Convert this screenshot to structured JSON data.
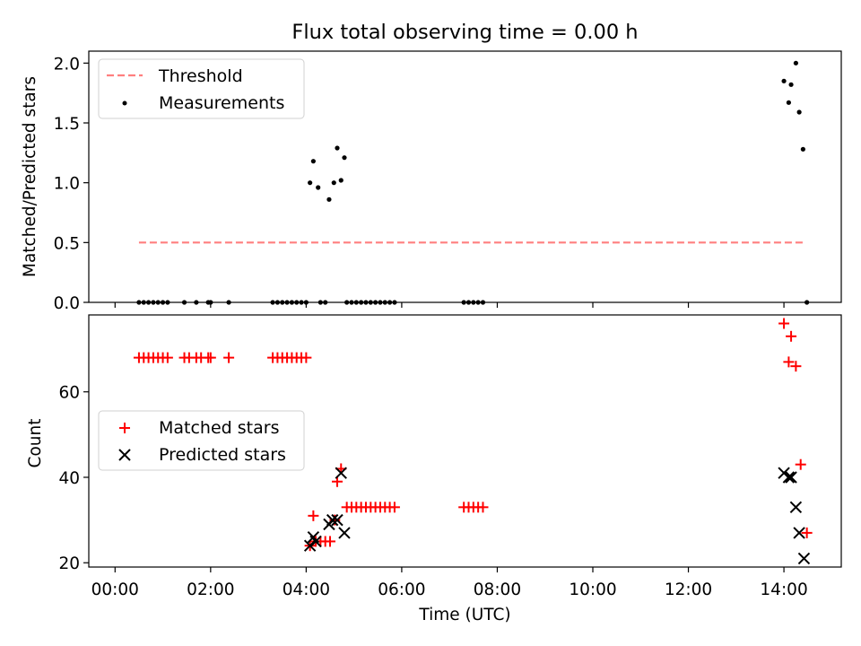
{
  "chart_data": {
    "title": "Flux total observing time = 0.00 h",
    "xlabel": "Time (UTC)",
    "x_unit": "hours UTC",
    "x_ticks": [
      0,
      2,
      4,
      6,
      8,
      10,
      12,
      14
    ],
    "x_tick_labels": [
      "00:00",
      "02:00",
      "04:00",
      "06:00",
      "08:00",
      "10:00",
      "12:00",
      "14:00"
    ],
    "x_range": [
      -0.55,
      15.2
    ],
    "panels": [
      {
        "type": "scatter",
        "ylabel": "Matched/Predicted stars",
        "ylim": [
          0,
          2.1
        ],
        "y_ticks": [
          0,
          0.5,
          1.0,
          1.5,
          2.0
        ],
        "y_tick_labels": [
          "0.0",
          "0.5",
          "1.0",
          "1.5",
          "2.0"
        ],
        "legend_position": "top-left",
        "threshold": {
          "label": "Threshold",
          "value": 0.5,
          "x_start": 0.5,
          "x_end": 14.4,
          "color": "#ff7f7f"
        },
        "series": [
          {
            "name": "Measurements",
            "color": "#000000",
            "marker": "dot",
            "points": [
              [
                0.5,
                0
              ],
              [
                0.6,
                0
              ],
              [
                0.7,
                0
              ],
              [
                0.8,
                0
              ],
              [
                0.9,
                0
              ],
              [
                1.0,
                0
              ],
              [
                1.1,
                0
              ],
              [
                1.45,
                0
              ],
              [
                1.7,
                0
              ],
              [
                1.95,
                0
              ],
              [
                2.0,
                0
              ],
              [
                2.38,
                0
              ],
              [
                3.3,
                0
              ],
              [
                3.4,
                0
              ],
              [
                3.5,
                0
              ],
              [
                3.6,
                0
              ],
              [
                3.7,
                0
              ],
              [
                3.8,
                0
              ],
              [
                3.9,
                0
              ],
              [
                4.0,
                0
              ],
              [
                4.3,
                0
              ],
              [
                4.4,
                0
              ],
              [
                4.85,
                0
              ],
              [
                4.95,
                0
              ],
              [
                5.05,
                0
              ],
              [
                5.15,
                0
              ],
              [
                5.25,
                0
              ],
              [
                5.35,
                0
              ],
              [
                5.45,
                0
              ],
              [
                5.55,
                0
              ],
              [
                5.65,
                0
              ],
              [
                5.75,
                0
              ],
              [
                5.85,
                0
              ],
              [
                7.3,
                0
              ],
              [
                7.4,
                0
              ],
              [
                7.5,
                0
              ],
              [
                7.6,
                0
              ],
              [
                7.7,
                0
              ],
              [
                4.08,
                1.0
              ],
              [
                4.15,
                1.18
              ],
              [
                4.25,
                0.96
              ],
              [
                4.48,
                0.86
              ],
              [
                4.58,
                1.0
              ],
              [
                4.65,
                1.29
              ],
              [
                4.73,
                1.02
              ],
              [
                4.8,
                1.21
              ],
              [
                14.0,
                1.85
              ],
              [
                14.1,
                1.67
              ],
              [
                14.15,
                1.82
              ],
              [
                14.25,
                2.0
              ],
              [
                14.32,
                1.59
              ],
              [
                14.4,
                1.28
              ],
              [
                14.48,
                0
              ]
            ]
          }
        ]
      },
      {
        "type": "scatter",
        "ylabel": "Count",
        "ylim": [
          19,
          78
        ],
        "y_ticks": [
          20,
          40,
          60
        ],
        "y_tick_labels": [
          "20",
          "40",
          "60"
        ],
        "legend_position": "center-left",
        "series": [
          {
            "name": "Matched stars",
            "color": "#ff0000",
            "marker": "plus",
            "points": [
              [
                0.5,
                68
              ],
              [
                0.6,
                68
              ],
              [
                0.7,
                68
              ],
              [
                0.8,
                68
              ],
              [
                0.9,
                68
              ],
              [
                1.0,
                68
              ],
              [
                1.1,
                68
              ],
              [
                1.45,
                68
              ],
              [
                1.55,
                68
              ],
              [
                1.7,
                68
              ],
              [
                1.8,
                68
              ],
              [
                1.95,
                68
              ],
              [
                2.0,
                68
              ],
              [
                2.38,
                68
              ],
              [
                3.3,
                68
              ],
              [
                3.4,
                68
              ],
              [
                3.5,
                68
              ],
              [
                3.6,
                68
              ],
              [
                3.7,
                68
              ],
              [
                3.8,
                68
              ],
              [
                3.9,
                68
              ],
              [
                4.0,
                68
              ],
              [
                4.08,
                24
              ],
              [
                4.15,
                31
              ],
              [
                4.2,
                25
              ],
              [
                4.3,
                25
              ],
              [
                4.4,
                25
              ],
              [
                4.5,
                25
              ],
              [
                4.6,
                30
              ],
              [
                4.65,
                39
              ],
              [
                4.73,
                42
              ],
              [
                4.85,
                33
              ],
              [
                4.95,
                33
              ],
              [
                5.05,
                33
              ],
              [
                5.15,
                33
              ],
              [
                5.25,
                33
              ],
              [
                5.35,
                33
              ],
              [
                5.45,
                33
              ],
              [
                5.55,
                33
              ],
              [
                5.65,
                33
              ],
              [
                5.75,
                33
              ],
              [
                5.85,
                33
              ],
              [
                7.3,
                33
              ],
              [
                7.4,
                33
              ],
              [
                7.5,
                33
              ],
              [
                7.6,
                33
              ],
              [
                7.7,
                33
              ],
              [
                14.0,
                76
              ],
              [
                14.1,
                67
              ],
              [
                14.15,
                73
              ],
              [
                14.25,
                66
              ],
              [
                14.35,
                43
              ],
              [
                14.48,
                27
              ]
            ]
          },
          {
            "name": "Predicted stars",
            "color": "#000000",
            "marker": "x",
            "points": [
              [
                4.08,
                24
              ],
              [
                4.15,
                26
              ],
              [
                4.2,
                25
              ],
              [
                4.48,
                29
              ],
              [
                4.55,
                30
              ],
              [
                4.65,
                30
              ],
              [
                4.73,
                41
              ],
              [
                4.8,
                27
              ],
              [
                14.0,
                41
              ],
              [
                14.1,
                40
              ],
              [
                14.15,
                40
              ],
              [
                14.25,
                33
              ],
              [
                14.32,
                27
              ],
              [
                14.42,
                21
              ]
            ]
          }
        ]
      }
    ]
  }
}
